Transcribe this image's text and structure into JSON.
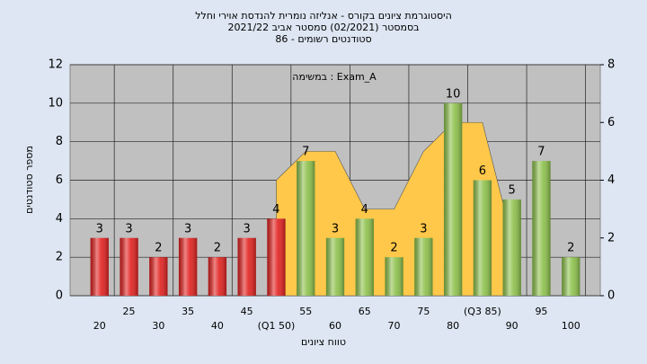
{
  "chart_data": {
    "type": "bar",
    "title": "היסטוגרמת ציונים בקורס - אנליזה נומרית להנדסת אוירי וחלל",
    "subtitle": "בסמסטר  (02/2021)  סמסטר אביב 2021/22",
    "subtitle2": "סטודנטים רשומים - 86",
    "annotation": "Exam_A : במשימה",
    "xlabel": "טווח ציונים",
    "ylabel": "מספר סטודנטים",
    "categories": [
      "20",
      "25",
      "30",
      "35",
      "40",
      "45",
      "(Q1 50)",
      "55",
      "60",
      "65",
      "70",
      "75",
      "80",
      "(Q3 85)",
      "90",
      "95",
      "100"
    ],
    "series": [
      {
        "type": "bar",
        "values": [
          3,
          3,
          2,
          3,
          2,
          3,
          4,
          7,
          3,
          4,
          2,
          3,
          10,
          6,
          5,
          7,
          2
        ],
        "colors": [
          "#e0201e",
          "#e0201e",
          "#e0201e",
          "#e0201e",
          "#e0201e",
          "#e0201e",
          "#e0201e",
          "#8cc04a",
          "#8cc04a",
          "#8cc04a",
          "#8cc04a",
          "#8cc04a",
          "#8cc04a",
          "#8cc04a",
          "#8cc04a",
          "#8cc04a",
          "#8cc04a"
        ]
      },
      {
        "type": "area",
        "axis": "y2",
        "color": "#ffc84a",
        "values": [
          null,
          null,
          null,
          null,
          null,
          null,
          4,
          5,
          5,
          3,
          3,
          5,
          6,
          6,
          2,
          null,
          null
        ]
      }
    ],
    "ylim": [
      0,
      12
    ],
    "yticks": [
      0,
      2,
      4,
      6,
      8,
      10,
      12
    ],
    "y2lim": [
      0,
      8
    ],
    "y2ticks": [
      0,
      2,
      4,
      6,
      8
    ],
    "grid": true
  }
}
